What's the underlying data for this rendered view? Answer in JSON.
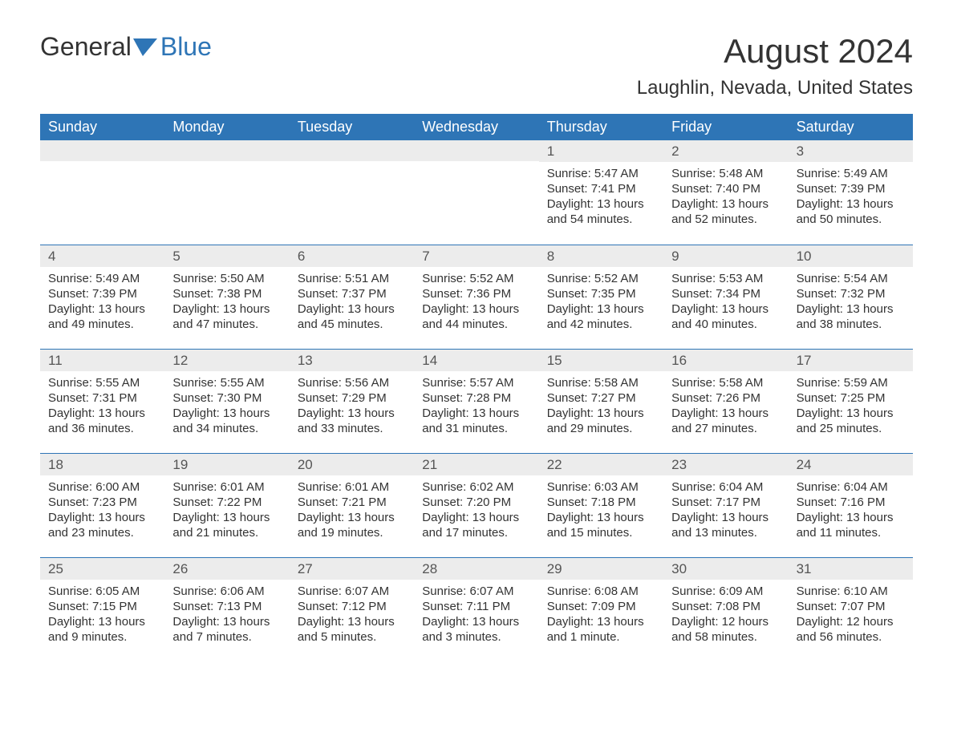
{
  "logo": {
    "text1": "General",
    "text2": "Blue"
  },
  "title": "August 2024",
  "subtitle": "Laughlin, Nevada, United States",
  "colors": {
    "header_bg": "#2e75b6",
    "header_text": "#ffffff",
    "daynum_bg": "#ececec",
    "text": "#333333",
    "week_border": "#2e75b6"
  },
  "fonts": {
    "title_size": 42,
    "subtitle_size": 24,
    "header_size": 18,
    "body_size": 15
  },
  "day_labels": [
    "Sunday",
    "Monday",
    "Tuesday",
    "Wednesday",
    "Thursday",
    "Friday",
    "Saturday"
  ],
  "weeks": [
    [
      null,
      null,
      null,
      null,
      {
        "n": "1",
        "sunrise": "Sunrise: 5:47 AM",
        "sunset": "Sunset: 7:41 PM",
        "daylight": "Daylight: 13 hours and 54 minutes."
      },
      {
        "n": "2",
        "sunrise": "Sunrise: 5:48 AM",
        "sunset": "Sunset: 7:40 PM",
        "daylight": "Daylight: 13 hours and 52 minutes."
      },
      {
        "n": "3",
        "sunrise": "Sunrise: 5:49 AM",
        "sunset": "Sunset: 7:39 PM",
        "daylight": "Daylight: 13 hours and 50 minutes."
      }
    ],
    [
      {
        "n": "4",
        "sunrise": "Sunrise: 5:49 AM",
        "sunset": "Sunset: 7:39 PM",
        "daylight": "Daylight: 13 hours and 49 minutes."
      },
      {
        "n": "5",
        "sunrise": "Sunrise: 5:50 AM",
        "sunset": "Sunset: 7:38 PM",
        "daylight": "Daylight: 13 hours and 47 minutes."
      },
      {
        "n": "6",
        "sunrise": "Sunrise: 5:51 AM",
        "sunset": "Sunset: 7:37 PM",
        "daylight": "Daylight: 13 hours and 45 minutes."
      },
      {
        "n": "7",
        "sunrise": "Sunrise: 5:52 AM",
        "sunset": "Sunset: 7:36 PM",
        "daylight": "Daylight: 13 hours and 44 minutes."
      },
      {
        "n": "8",
        "sunrise": "Sunrise: 5:52 AM",
        "sunset": "Sunset: 7:35 PM",
        "daylight": "Daylight: 13 hours and 42 minutes."
      },
      {
        "n": "9",
        "sunrise": "Sunrise: 5:53 AM",
        "sunset": "Sunset: 7:34 PM",
        "daylight": "Daylight: 13 hours and 40 minutes."
      },
      {
        "n": "10",
        "sunrise": "Sunrise: 5:54 AM",
        "sunset": "Sunset: 7:32 PM",
        "daylight": "Daylight: 13 hours and 38 minutes."
      }
    ],
    [
      {
        "n": "11",
        "sunrise": "Sunrise: 5:55 AM",
        "sunset": "Sunset: 7:31 PM",
        "daylight": "Daylight: 13 hours and 36 minutes."
      },
      {
        "n": "12",
        "sunrise": "Sunrise: 5:55 AM",
        "sunset": "Sunset: 7:30 PM",
        "daylight": "Daylight: 13 hours and 34 minutes."
      },
      {
        "n": "13",
        "sunrise": "Sunrise: 5:56 AM",
        "sunset": "Sunset: 7:29 PM",
        "daylight": "Daylight: 13 hours and 33 minutes."
      },
      {
        "n": "14",
        "sunrise": "Sunrise: 5:57 AM",
        "sunset": "Sunset: 7:28 PM",
        "daylight": "Daylight: 13 hours and 31 minutes."
      },
      {
        "n": "15",
        "sunrise": "Sunrise: 5:58 AM",
        "sunset": "Sunset: 7:27 PM",
        "daylight": "Daylight: 13 hours and 29 minutes."
      },
      {
        "n": "16",
        "sunrise": "Sunrise: 5:58 AM",
        "sunset": "Sunset: 7:26 PM",
        "daylight": "Daylight: 13 hours and 27 minutes."
      },
      {
        "n": "17",
        "sunrise": "Sunrise: 5:59 AM",
        "sunset": "Sunset: 7:25 PM",
        "daylight": "Daylight: 13 hours and 25 minutes."
      }
    ],
    [
      {
        "n": "18",
        "sunrise": "Sunrise: 6:00 AM",
        "sunset": "Sunset: 7:23 PM",
        "daylight": "Daylight: 13 hours and 23 minutes."
      },
      {
        "n": "19",
        "sunrise": "Sunrise: 6:01 AM",
        "sunset": "Sunset: 7:22 PM",
        "daylight": "Daylight: 13 hours and 21 minutes."
      },
      {
        "n": "20",
        "sunrise": "Sunrise: 6:01 AM",
        "sunset": "Sunset: 7:21 PM",
        "daylight": "Daylight: 13 hours and 19 minutes."
      },
      {
        "n": "21",
        "sunrise": "Sunrise: 6:02 AM",
        "sunset": "Sunset: 7:20 PM",
        "daylight": "Daylight: 13 hours and 17 minutes."
      },
      {
        "n": "22",
        "sunrise": "Sunrise: 6:03 AM",
        "sunset": "Sunset: 7:18 PM",
        "daylight": "Daylight: 13 hours and 15 minutes."
      },
      {
        "n": "23",
        "sunrise": "Sunrise: 6:04 AM",
        "sunset": "Sunset: 7:17 PM",
        "daylight": "Daylight: 13 hours and 13 minutes."
      },
      {
        "n": "24",
        "sunrise": "Sunrise: 6:04 AM",
        "sunset": "Sunset: 7:16 PM",
        "daylight": "Daylight: 13 hours and 11 minutes."
      }
    ],
    [
      {
        "n": "25",
        "sunrise": "Sunrise: 6:05 AM",
        "sunset": "Sunset: 7:15 PM",
        "daylight": "Daylight: 13 hours and 9 minutes."
      },
      {
        "n": "26",
        "sunrise": "Sunrise: 6:06 AM",
        "sunset": "Sunset: 7:13 PM",
        "daylight": "Daylight: 13 hours and 7 minutes."
      },
      {
        "n": "27",
        "sunrise": "Sunrise: 6:07 AM",
        "sunset": "Sunset: 7:12 PM",
        "daylight": "Daylight: 13 hours and 5 minutes."
      },
      {
        "n": "28",
        "sunrise": "Sunrise: 6:07 AM",
        "sunset": "Sunset: 7:11 PM",
        "daylight": "Daylight: 13 hours and 3 minutes."
      },
      {
        "n": "29",
        "sunrise": "Sunrise: 6:08 AM",
        "sunset": "Sunset: 7:09 PM",
        "daylight": "Daylight: 13 hours and 1 minute."
      },
      {
        "n": "30",
        "sunrise": "Sunrise: 6:09 AM",
        "sunset": "Sunset: 7:08 PM",
        "daylight": "Daylight: 12 hours and 58 minutes."
      },
      {
        "n": "31",
        "sunrise": "Sunrise: 6:10 AM",
        "sunset": "Sunset: 7:07 PM",
        "daylight": "Daylight: 12 hours and 56 minutes."
      }
    ]
  ]
}
